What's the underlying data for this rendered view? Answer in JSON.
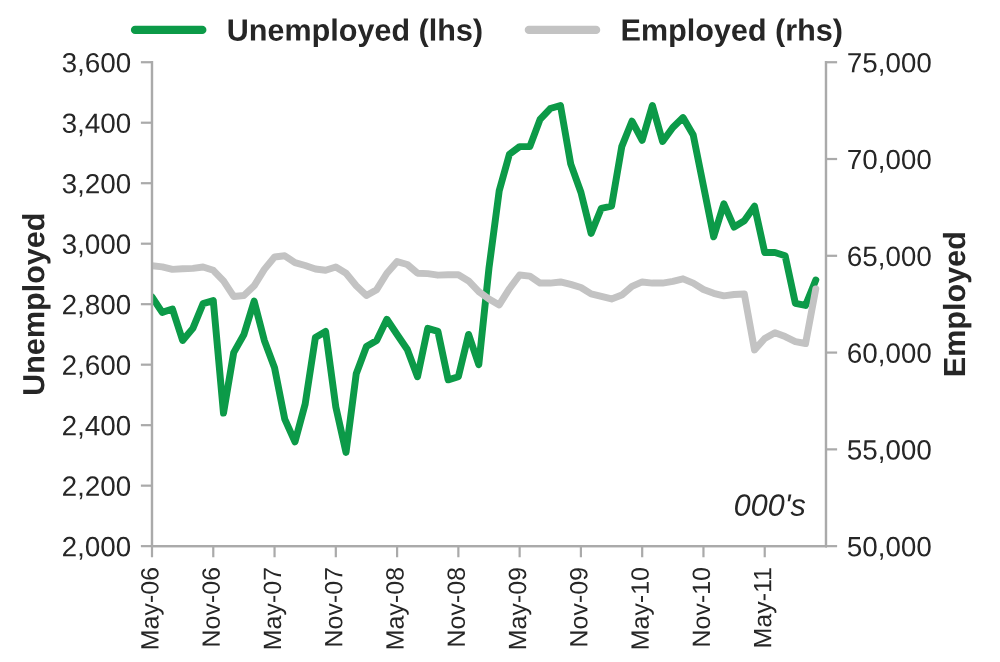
{
  "chart_data": {
    "type": "line",
    "categories": [
      "May-06",
      null,
      null,
      null,
      null,
      null,
      "Nov-06",
      null,
      null,
      null,
      null,
      null,
      "May-07",
      null,
      null,
      null,
      null,
      null,
      "Nov-07",
      null,
      null,
      null,
      null,
      null,
      "May-08",
      null,
      null,
      null,
      null,
      null,
      "Nov-08",
      null,
      null,
      null,
      null,
      null,
      "May-09",
      null,
      null,
      null,
      null,
      null,
      "Nov-09",
      null,
      null,
      null,
      null,
      null,
      "May-10",
      null,
      null,
      null,
      null,
      null,
      "Nov-10",
      null,
      null,
      null,
      null,
      null,
      "May-11",
      null,
      null,
      null,
      null,
      null
    ],
    "series": [
      {
        "name": "Unemployed (lhs)",
        "color": "#0c9a48",
        "values": [
          2824,
          2773,
          2784,
          2680,
          2720,
          2802,
          2812,
          2440,
          2640,
          2700,
          2810,
          2680,
          2590,
          2420,
          2345,
          2470,
          2690,
          2710,
          2460,
          2310,
          2570,
          2660,
          2680,
          2750,
          2700,
          2650,
          2560,
          2720,
          2710,
          2550,
          2560,
          2700,
          2600,
          2920,
          3175,
          3296,
          3321,
          3321,
          3411,
          3447,
          3457,
          3264,
          3170,
          3034,
          3117,
          3124,
          3321,
          3405,
          3342,
          3457,
          3338,
          3384,
          3417,
          3359,
          3191,
          3023,
          3132,
          3055,
          3076,
          3124,
          2971,
          2971,
          2960,
          2803,
          2796,
          2880
        ]
      },
      {
        "name": "Employed (rhs)",
        "color": "#c3c3c3",
        "axis": "y2",
        "values": [
          64490,
          64430,
          64300,
          64330,
          64350,
          64420,
          64250,
          63700,
          62900,
          62950,
          63450,
          64300,
          64940,
          65000,
          64650,
          64500,
          64320,
          64250,
          64420,
          64100,
          63450,
          62950,
          63250,
          64100,
          64700,
          64550,
          64100,
          64080,
          64000,
          64020,
          64020,
          63700,
          63150,
          62770,
          62460,
          63300,
          64010,
          63950,
          63590,
          63590,
          63650,
          63520,
          63360,
          63030,
          62900,
          62770,
          62970,
          63420,
          63650,
          63590,
          63590,
          63680,
          63810,
          63590,
          63260,
          63060,
          62930,
          63000,
          63030,
          60140,
          60730,
          61030,
          60830,
          60570,
          60470,
          63290
        ]
      }
    ],
    "ylabel": "Unemployed",
    "y2label": "Employed",
    "ylim": [
      2000,
      3600
    ],
    "yticks": [
      {
        "value": 2000,
        "label": "2,000"
      },
      {
        "value": 2200,
        "label": "2,200"
      },
      {
        "value": 2400,
        "label": "2,400"
      },
      {
        "value": 2600,
        "label": "2,600"
      },
      {
        "value": 2800,
        "label": "2,800"
      },
      {
        "value": 3000,
        "label": "3,000"
      },
      {
        "value": 3200,
        "label": "3,200"
      },
      {
        "value": 3400,
        "label": "3,400"
      },
      {
        "value": 3600,
        "label": "3,600"
      }
    ],
    "y2lim": [
      50000,
      75000
    ],
    "y2ticks": [
      {
        "value": 50000,
        "label": "50,000"
      },
      {
        "value": 55000,
        "label": "55,000"
      },
      {
        "value": 60000,
        "label": "60,000"
      },
      {
        "value": 65000,
        "label": "65,000"
      },
      {
        "value": 70000,
        "label": "70,000"
      },
      {
        "value": 75000,
        "label": "75,000"
      }
    ],
    "annotations": [
      "000's"
    ],
    "legend": "top",
    "grid": false,
    "marker": "none",
    "line_style": "solid"
  }
}
